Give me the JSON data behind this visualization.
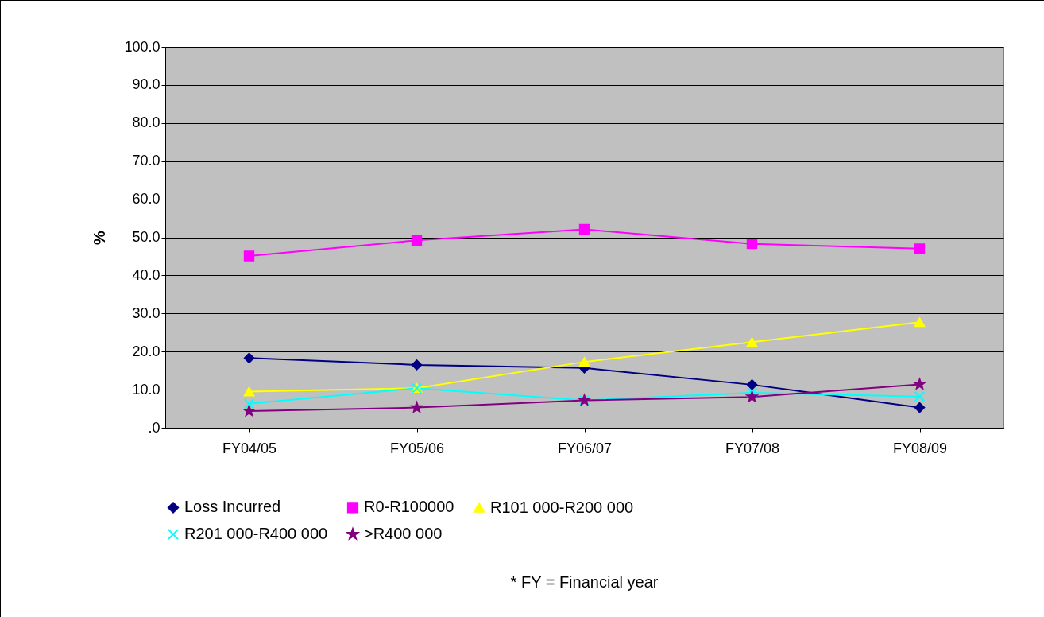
{
  "chart_data": {
    "type": "line",
    "ylabel": "%",
    "categories": [
      "FY04/05",
      "FY05/06",
      "FY06/07",
      "FY07/08",
      "FY08/09"
    ],
    "series": [
      {
        "name": "Loss Incurred",
        "color": "#000080",
        "marker": "diamond",
        "values": [
          18.3,
          16.5,
          15.7,
          11.3,
          5.3
        ]
      },
      {
        "name": "R0-R100000",
        "color": "#ff00ff",
        "marker": "square",
        "values": [
          45.1,
          49.2,
          52.1,
          48.3,
          47.0
        ]
      },
      {
        "name": "R101 000-R200 000",
        "color": "#ffff00",
        "marker": "triangle",
        "values": [
          9.5,
          10.4,
          17.3,
          22.5,
          27.7
        ]
      },
      {
        "name": "R201 000-R400 000",
        "color": "#00ffff",
        "marker": "cross",
        "values": [
          6.3,
          10.4,
          7.2,
          9.2,
          8.2
        ]
      },
      {
        "name": ">R400 000",
        "color": "#800080",
        "marker": "star",
        "values": [
          4.4,
          5.3,
          7.2,
          8.1,
          11.4
        ]
      }
    ],
    "ylim": [
      0,
      100
    ],
    "yticks": [
      {
        "value": 0,
        "label": ".0"
      },
      {
        "value": 10,
        "label": "10.0"
      },
      {
        "value": 20,
        "label": "20.0"
      },
      {
        "value": 30,
        "label": "30.0"
      },
      {
        "value": 40,
        "label": "40.0"
      },
      {
        "value": 50,
        "label": "50.0"
      },
      {
        "value": 60,
        "label": "60.0"
      },
      {
        "value": 70,
        "label": "70.0"
      },
      {
        "value": 80,
        "label": "80.0"
      },
      {
        "value": 90,
        "label": "90.0"
      },
      {
        "value": 100,
        "label": "100.0"
      }
    ],
    "grid": "y",
    "legend": "bottom",
    "line_style": "solid",
    "annotations": [
      "* FY = Financial year"
    ]
  }
}
